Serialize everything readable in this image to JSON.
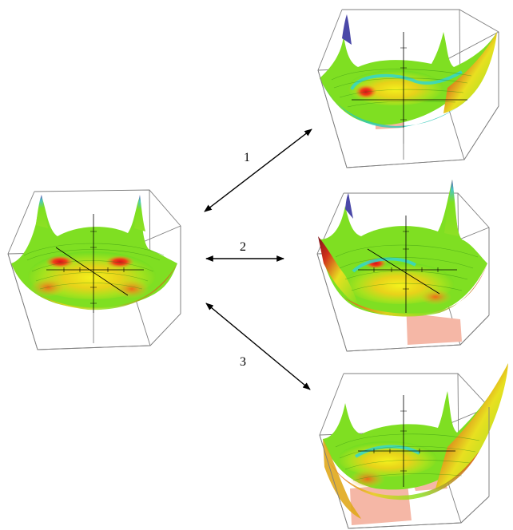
{
  "arrows": [
    {
      "label": "1"
    },
    {
      "label": "2"
    },
    {
      "label": "3"
    }
  ],
  "colors": {
    "surface_green": "#7ee020",
    "surface_yellow": "#f2f21a",
    "surface_red": "#e02a12",
    "surface_cyan": "#33d6cc",
    "surface_blue": "#3a3aa0",
    "shadow_pink": "#f5b7a6",
    "box_edge": "#7f7f7f"
  }
}
